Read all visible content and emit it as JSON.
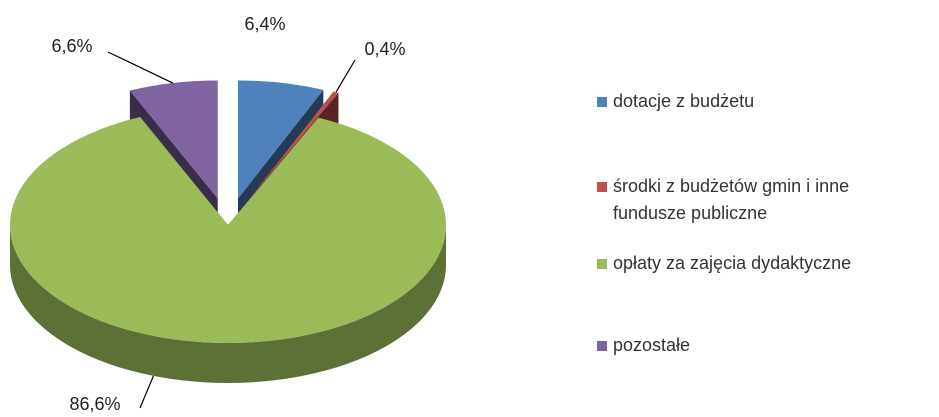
{
  "chart_data": {
    "type": "pie3d",
    "categories": [
      "dotacje z budżetu",
      "środki z budżetów gmin i inne fundusze publiczne",
      "opłaty za zajęcia dydaktyczne",
      "pozostałe"
    ],
    "values": [
      6.4,
      0.4,
      86.6,
      6.6
    ],
    "value_labels": [
      "6,4%",
      "0,4%",
      "86,6%",
      "6,6%"
    ],
    "colors": [
      "#4f81bd",
      "#c0504d",
      "#9bbb59",
      "#8064a2"
    ],
    "legend": "right"
  }
}
